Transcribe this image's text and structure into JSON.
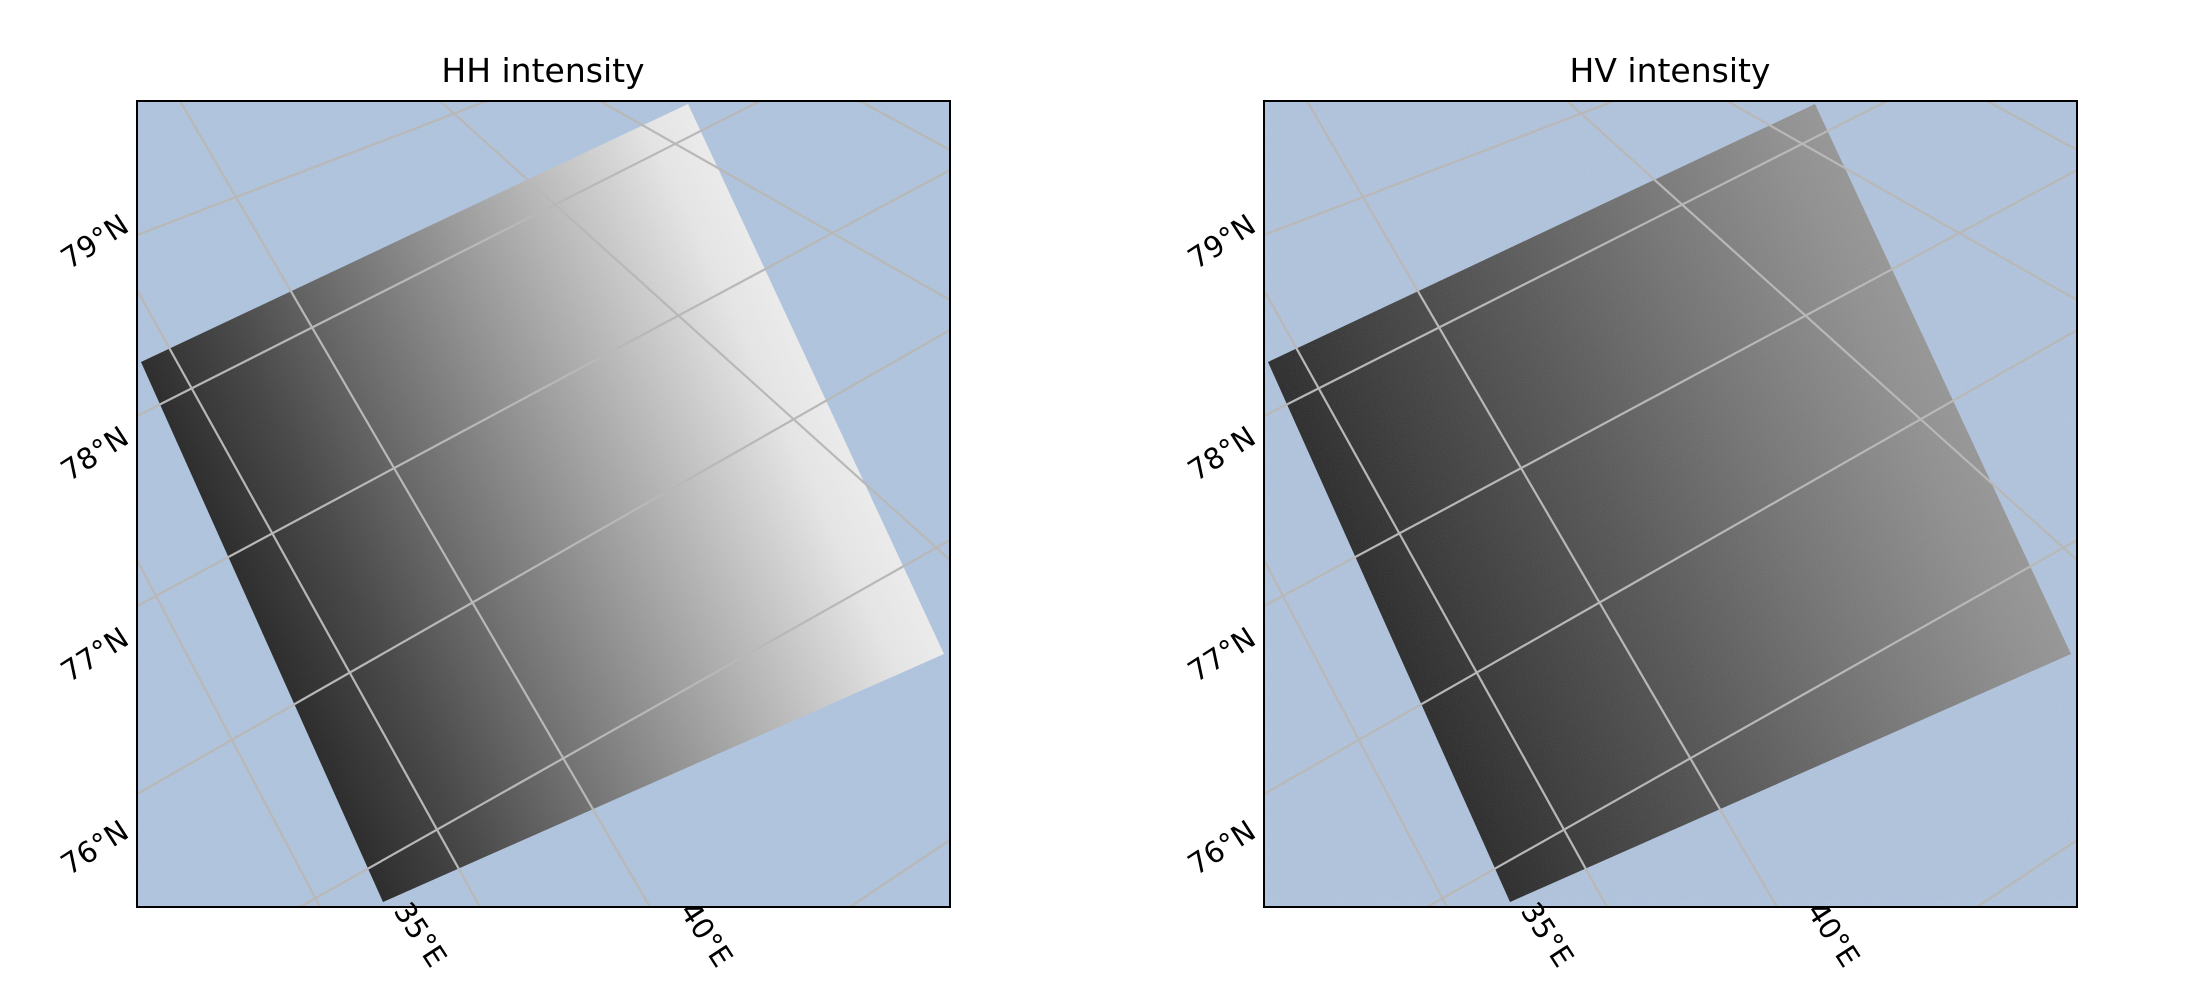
{
  "figure": {
    "panels": [
      {
        "title": "HH intensity",
        "lat_labels": [
          "79°N",
          "78°N",
          "77°N",
          "76°N"
        ],
        "lon_labels": [
          "35°E",
          "40°E"
        ],
        "gradient_stops": [
          "#1a1a1a",
          "#454545",
          "#7a7a7a",
          "#b0b0b0",
          "#e6e6e6",
          "#fbfbfb"
        ]
      },
      {
        "title": "HV intensity",
        "lat_labels": [
          "79°N",
          "78°N",
          "77°N",
          "76°N"
        ],
        "lon_labels": [
          "35°E",
          "40°E"
        ],
        "gradient_stops": [
          "#1e1e1e",
          "#3a3a3a",
          "#555555",
          "#737373",
          "#8f8f8f",
          "#a3a3a3"
        ]
      }
    ]
  },
  "colors": {
    "ocean": "#b0c4de",
    "graticule": "#c8c0b8",
    "graticule_on_image": "#b8b8b8",
    "frame": "#000000"
  }
}
